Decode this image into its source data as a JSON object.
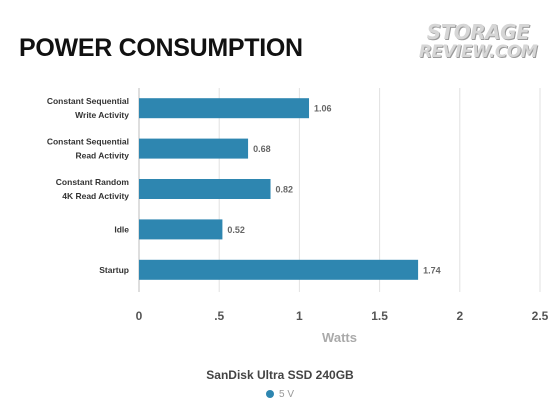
{
  "chart_data": {
    "type": "bar",
    "orientation": "horizontal",
    "title": "POWER CONSUMPTION",
    "categories": [
      [
        "Constant Sequential",
        "Write Activity"
      ],
      [
        "Constant Sequential",
        "Read Activity"
      ],
      [
        "Constant Random",
        "4K Read Activity"
      ],
      [
        "Idle"
      ],
      [
        "Startup"
      ]
    ],
    "series": [
      {
        "name": "5 V",
        "color": "#2e86b0",
        "values": [
          1.06,
          0.68,
          0.82,
          0.52,
          1.74
        ]
      }
    ],
    "value_labels": [
      "1.06",
      "0.68",
      "0.82",
      "0.52",
      "1.74"
    ],
    "xlabel": "Watts",
    "xlim": [
      0,
      2.5
    ],
    "x_ticks": [
      0,
      0.5,
      1,
      1.5,
      2,
      2.5
    ],
    "x_tick_labels": [
      "0",
      ".5",
      "1",
      "1.5",
      "2",
      "2.5"
    ],
    "grid": "vertical",
    "legend": {
      "title": "SanDisk Ultra SSD 240GB",
      "placement": "bottom"
    }
  },
  "logo": {
    "line1": "STORAGE",
    "line2": "REVIEW.COM"
  }
}
